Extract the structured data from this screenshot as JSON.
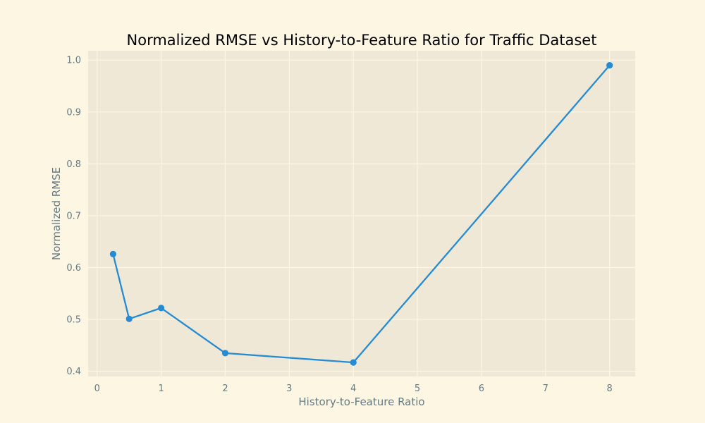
{
  "chart_data": {
    "type": "line",
    "title": "Normalized RMSE vs History-to-Feature Ratio for Traffic Dataset",
    "xlabel": "History-to-Feature Ratio",
    "ylabel": "Normalized RMSE",
    "xlim": [
      -0.14,
      8.4
    ],
    "ylim": [
      0.39,
      1.018
    ],
    "xticks": [
      "0",
      "1",
      "2",
      "3",
      "4",
      "5",
      "6",
      "7",
      "8"
    ],
    "yticks": [
      "0.4",
      "0.5",
      "0.6",
      "0.7",
      "0.8",
      "0.9",
      "1.0"
    ],
    "grid": true,
    "series": [
      {
        "x": [
          0.25,
          0.5,
          1,
          2,
          4,
          8
        ],
        "y": [
          0.626,
          0.501,
          0.522,
          0.435,
          0.417,
          0.99
        ]
      }
    ],
    "colors": {
      "page_background": "#fdf6e3",
      "plot_background": "#efe8d6",
      "grid": "#fdf6e3",
      "line": "#268bd2",
      "text": "#657b83"
    }
  }
}
